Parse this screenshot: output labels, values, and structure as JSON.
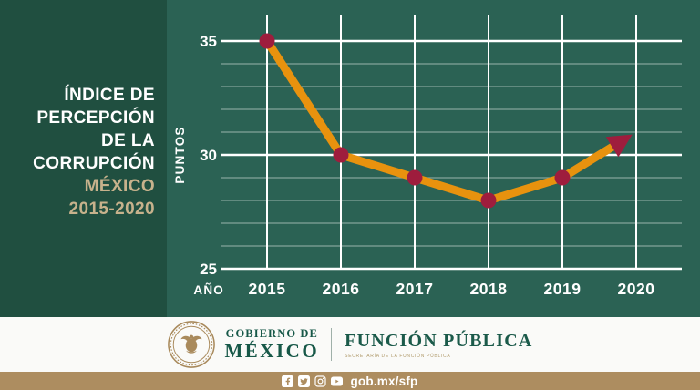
{
  "sidebar": {
    "title_lines": [
      "ÍNDICE DE",
      "PERCEPCIÓN",
      "DE LA",
      "CORRUPCIÓN"
    ],
    "accent_lines": [
      "MÉXICO",
      "2015-2020"
    ]
  },
  "chart_data": {
    "type": "line",
    "title": "Índice de Percepción de la Corrupción México 2015-2020",
    "x": [
      "2015",
      "2016",
      "2017",
      "2018",
      "2019",
      "2020"
    ],
    "values": [
      35,
      30,
      29,
      28,
      29,
      31
    ],
    "xlabel": "AÑO",
    "ylabel": "PUNTOS",
    "ylim": [
      25,
      35
    ],
    "yticks": [
      35,
      30,
      25
    ],
    "grid": true,
    "minor_grid_step": 1,
    "end_marker": "arrow-up",
    "line_color": "#e8920e",
    "point_color": "#9e1d3d",
    "grid_color": "#ffffff",
    "legend_position": "none"
  },
  "footer": {
    "gobierno_line1": "GOBIERNO DE",
    "gobierno_line2": "MÉXICO",
    "agency": "FUNCIÓN PÚBLICA",
    "agency_sub": "SECRETARÍA DE LA FUNCIÓN PÚBLICA",
    "url": "gob.mx/sfp",
    "social_icons": [
      "facebook",
      "twitter",
      "instagram",
      "youtube"
    ]
  },
  "colors": {
    "sidebar_green": "#204f40",
    "main_green": "#2b6254",
    "accent_tan": "#c7b28c",
    "bar_tan": "#ad8d60",
    "logo_green": "#175848",
    "seal_gold": "#a98a5c"
  }
}
